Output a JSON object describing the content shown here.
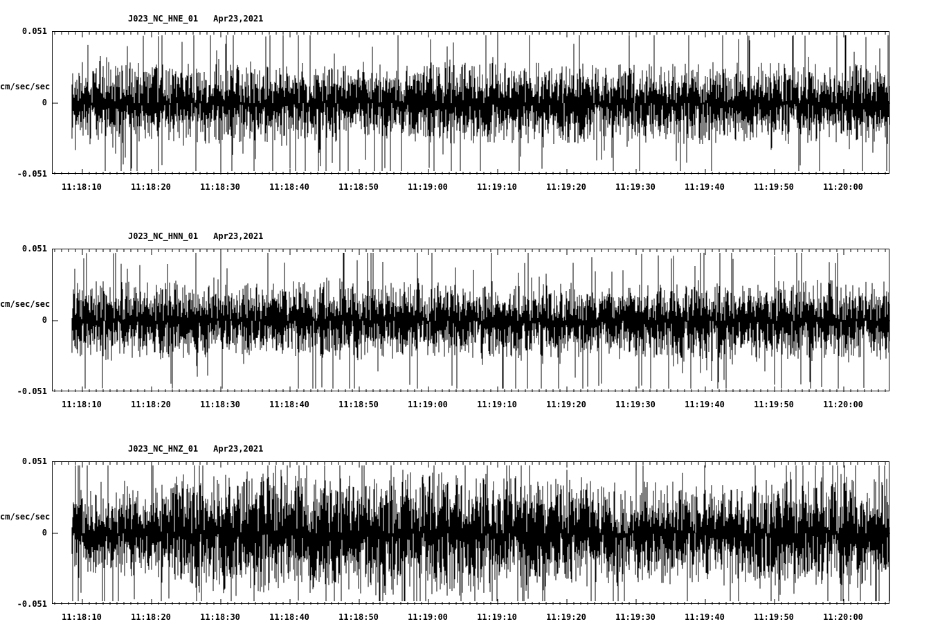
{
  "figure": {
    "background": "#ffffff",
    "station_network": "J023_NC",
    "date": "Apr23,2021"
  },
  "chart_data": [
    {
      "type": "line",
      "title": "J023_NC_HNE_01",
      "subtitle": "Apr23,2021",
      "ylabel": "cm/sec/sec",
      "ylim": [
        -0.051,
        0.051
      ],
      "ytick_labels": [
        "0.051",
        "0",
        "-0.051"
      ],
      "xtick_labels": [
        "11:18:10",
        "11:18:20",
        "11:18:30",
        "11:18:40",
        "11:18:50",
        "11:19:00",
        "11:19:10",
        "11:19:20",
        "11:19:30",
        "11:19:40",
        "11:19:50",
        "11:20:00"
      ],
      "x_tick_interval_seconds": 10,
      "grid": false,
      "legend": "none",
      "trace_color": "#000000",
      "noise": {
        "seed": 101,
        "base_amp": 0.01,
        "envelope": [
          1.05,
          1.0,
          1.0,
          1.05,
          0.95,
          1.0,
          1.0,
          1.0,
          0.95,
          1.0,
          1.0,
          1.0,
          1.0
        ]
      }
    },
    {
      "type": "line",
      "title": "J023_NC_HNN_01",
      "subtitle": "Apr23,2021",
      "ylabel": "cm/sec/sec",
      "ylim": [
        -0.051,
        0.051
      ],
      "ytick_labels": [
        "0.051",
        "0",
        "-0.051"
      ],
      "xtick_labels": [
        "11:18:10",
        "11:18:20",
        "11:18:30",
        "11:18:40",
        "11:18:50",
        "11:19:00",
        "11:19:10",
        "11:19:20",
        "11:19:30",
        "11:19:40",
        "11:19:50",
        "11:20:00"
      ],
      "x_tick_interval_seconds": 10,
      "grid": false,
      "legend": "none",
      "trace_color": "#000000",
      "noise": {
        "seed": 202,
        "base_amp": 0.0095,
        "envelope": [
          1.0,
          1.05,
          0.95,
          1.0,
          1.05,
          1.0,
          0.95,
          1.0,
          0.95,
          1.0,
          1.0,
          1.05,
          1.0
        ]
      }
    },
    {
      "type": "line",
      "title": "J023_NC_HNZ_01",
      "subtitle": "Apr23,2021",
      "ylabel": "cm/sec/sec",
      "ylim": [
        -0.051,
        0.051
      ],
      "ytick_labels": [
        "0.051",
        "0",
        "-0.051"
      ],
      "xtick_labels": [
        "11:18:10",
        "11:18:20",
        "11:18:30",
        "11:18:40",
        "11:18:50",
        "11:19:00",
        "11:19:10",
        "11:19:20",
        "11:19:30",
        "11:19:40",
        "11:19:50",
        "11:20:00"
      ],
      "x_tick_interval_seconds": 10,
      "grid": false,
      "legend": "none",
      "trace_color": "#000000",
      "noise": {
        "seed": 303,
        "base_amp": 0.013,
        "envelope": [
          0.8,
          0.85,
          1.15,
          1.2,
          1.15,
          1.2,
          1.2,
          1.15,
          1.0,
          0.95,
          1.0,
          1.1,
          1.05
        ]
      }
    }
  ]
}
